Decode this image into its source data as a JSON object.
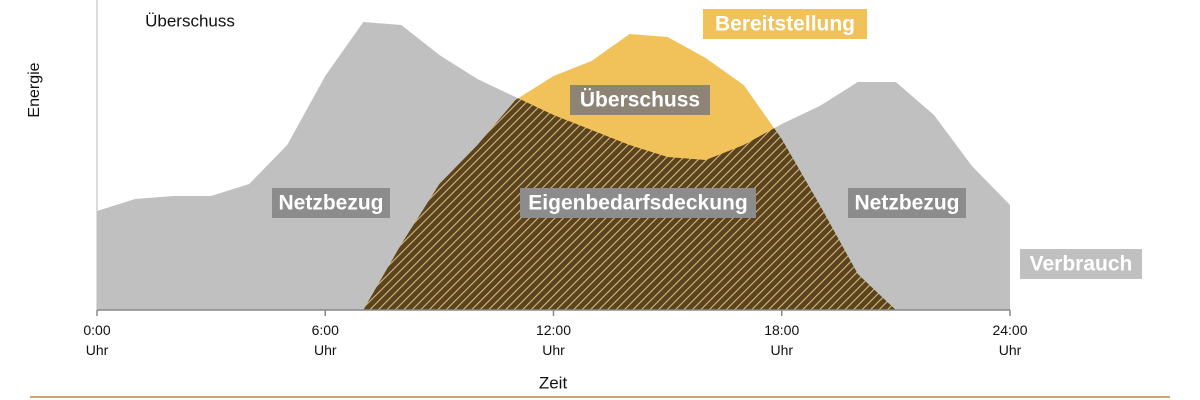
{
  "chart_data": {
    "type": "area",
    "x_label": "Zeit",
    "y_label": "Energie",
    "x": [
      0,
      1,
      2,
      3,
      4,
      5,
      6,
      7,
      8,
      9,
      10,
      11,
      12,
      13,
      14,
      15,
      16,
      17,
      18,
      19,
      20,
      21,
      22,
      23,
      24
    ],
    "xlim": [
      0,
      24
    ],
    "ylim": [
      0,
      100
    ],
    "xticks": [
      {
        "value": 0,
        "label": "0:00 Uhr"
      },
      {
        "value": 6,
        "label": "6:00 Uhr"
      },
      {
        "value": 12,
        "label": "12:00 Uhr"
      },
      {
        "value": 18,
        "label": "18:00 Uhr"
      },
      {
        "value": 24,
        "label": "24:00 Uhr"
      }
    ],
    "series": [
      {
        "name": "Verbrauch",
        "color": "#c0c0c0",
        "values": [
          33,
          37,
          38,
          38,
          42,
          55,
          78,
          96,
          95,
          85,
          77,
          71,
          65,
          60,
          55,
          51,
          50,
          55,
          62,
          68,
          76,
          76,
          65,
          48,
          35
        ]
      },
      {
        "name": "Bereitstellung",
        "color": "#f2c25a",
        "values": [
          null,
          null,
          null,
          null,
          null,
          null,
          null,
          0,
          22,
          42,
          55,
          70,
          78,
          83,
          92,
          91,
          84,
          75,
          57,
          35,
          12,
          0,
          null,
          null,
          null
        ]
      }
    ],
    "annotations": [
      "Überschuss",
      "Überschuss",
      "Netzbezug",
      "Eigenbedarfsdeckung",
      "Netzbezug"
    ]
  }
}
